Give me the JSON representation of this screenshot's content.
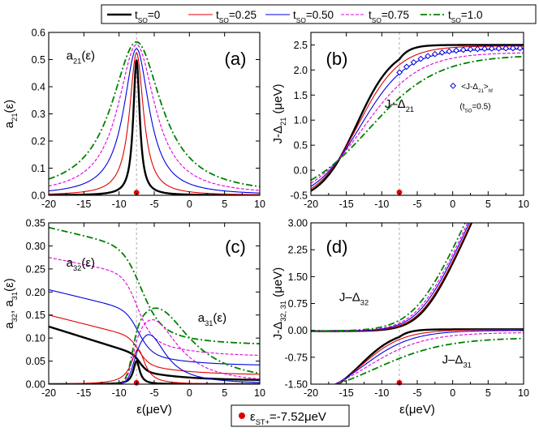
{
  "legend": {
    "items": [
      {
        "label": "t",
        "sub": "SO",
        "value": "=0",
        "color": "#000000",
        "dash": "",
        "width": 2.4
      },
      {
        "label": "t",
        "sub": "SO",
        "value": "=0.25",
        "color": "#e00000",
        "dash": "",
        "width": 1.1
      },
      {
        "label": "t",
        "sub": "SO",
        "value": "=0.50",
        "color": "#0000e0",
        "dash": "",
        "width": 1.1
      },
      {
        "label": "t",
        "sub": "SO",
        "value": "=0.75",
        "color": "#e000e0",
        "dash": "4,2",
        "width": 1.1
      },
      {
        "label": "t",
        "sub": "SO",
        "value": "=1.0",
        "color": "#008000",
        "dash": "8,3,2,3",
        "width": 1.8
      }
    ]
  },
  "bottom_legend": {
    "label": "ε",
    "sub": "ST+",
    "value": "=-7.52μeV",
    "marker_color": "#e00000"
  },
  "chart_data": [
    {
      "id": "a",
      "type": "line",
      "panel_label": "(a)",
      "ylabel": "a",
      "ylabel_sub": "21",
      "ylabel_tail": "(ε)",
      "xlabel": "",
      "xlim": [
        -20,
        10
      ],
      "ylim": [
        0,
        0.6
      ],
      "xticks": [
        "-20",
        "-15",
        "-10",
        "-5",
        "0",
        "5",
        "10"
      ],
      "yticks": [
        "0.0",
        "0.1",
        "0.2",
        "0.3",
        "0.4",
        "0.5",
        "0.6"
      ],
      "ytick_values": [
        0,
        0.1,
        0.2,
        0.3,
        0.4,
        0.5,
        0.6
      ],
      "vline_x": -7.52,
      "marker": {
        "x": -7.52,
        "y": 0.01
      },
      "annotations": [
        {
          "text": "a",
          "sub": "21",
          "tail": "(ε)",
          "x": -17.5,
          "y": 0.5
        }
      ],
      "series": [
        {
          "name": "tSO=0",
          "kind": "lorentz",
          "peak": 0.5,
          "center": -7.52,
          "gamma": 0.55
        },
        {
          "name": "tSO=0.25",
          "kind": "lorentz",
          "peak": 0.525,
          "center": -7.52,
          "gamma": 1.2
        },
        {
          "name": "tSO=0.50",
          "kind": "lorentz",
          "peak": 0.54,
          "center": -7.52,
          "gamma": 2.2
        },
        {
          "name": "tSO=0.75",
          "kind": "lorentz",
          "peak": 0.555,
          "center": -7.52,
          "gamma": 3.2
        },
        {
          "name": "tSO=1.0",
          "kind": "lorentz",
          "peak": 0.565,
          "center": -7.52,
          "gamma": 4.3
        }
      ]
    },
    {
      "id": "b",
      "type": "line",
      "panel_label": "(b)",
      "ylabel": "J-Δ",
      "ylabel_sub": "21",
      "ylabel_tail": " (μeV)",
      "xlabel": "",
      "xlim": [
        -20,
        10
      ],
      "ylim": [
        -0.5,
        2.75
      ],
      "xticks": [
        "-20",
        "-15",
        "-10",
        "-5",
        "0",
        "5",
        "10"
      ],
      "yticks": [
        "-0.5",
        "0.0",
        "0.5",
        "1.0",
        "1.5",
        "2.0",
        "2.5"
      ],
      "ytick_values": [
        -0.5,
        0,
        0.5,
        1.0,
        1.5,
        2.0,
        2.5
      ],
      "vline_x": -7.52,
      "marker": {
        "x": -7.52,
        "y": -0.44
      },
      "annotations": [
        {
          "text": "J–Δ",
          "sub": "21",
          "tail": "",
          "x": -9.6,
          "y": 1.25
        },
        {
          "text": "<J-Δ",
          "sub": "21",
          "tail": ">",
          "sub2": "hf",
          "x": 1.2,
          "y": 1.62
        },
        {
          "text": "(t",
          "sub": "SO",
          "tail": "=0.5)",
          "x": 1.0,
          "y": 1.22
        }
      ],
      "series": [
        {
          "name": "tSO=0",
          "kind": "sigmoid",
          "low": -0.65,
          "high": 2.5,
          "center": -13.5,
          "width": 2.6,
          "cut": -7.52
        },
        {
          "name": "tSO=0.25",
          "kind": "sigmoid",
          "low": -0.65,
          "high": 2.48,
          "center": -13.3,
          "width": 2.9,
          "cut": null
        },
        {
          "name": "tSO=0.50",
          "kind": "sigmoid",
          "low": -0.65,
          "high": 2.42,
          "center": -13.0,
          "width": 3.3,
          "cut": null
        },
        {
          "name": "tSO=0.75",
          "kind": "sigmoid",
          "low": -0.65,
          "high": 2.35,
          "center": -12.6,
          "width": 3.9,
          "cut": null
        },
        {
          "name": "tSO=1.0",
          "kind": "sigmoid",
          "low": -0.65,
          "high": 2.3,
          "center": -11.8,
          "width": 4.8,
          "cut": null
        }
      ],
      "markers": {
        "name": "<J-Δ21>hf (tSO=0.5)",
        "x": [
          -7.5,
          -6.5,
          -5.5,
          -4.5,
          -3.5,
          -2.5,
          -1.5,
          -0.5,
          0.5,
          1.5,
          2.5,
          3.5,
          4.5,
          5.5,
          6.5,
          7.5,
          8.5,
          9.5
        ],
        "color": "#0000e0"
      }
    },
    {
      "id": "c",
      "type": "line",
      "panel_label": "(c)",
      "ylabel": "a",
      "ylabel_sub": "32",
      "ylabel_tail": ", a",
      "ylabel_sub2": "31",
      "ylabel_tail2": "(ε)",
      "xlabel": "ε(μeV)",
      "xlim": [
        -20,
        10
      ],
      "ylim": [
        0,
        0.35
      ],
      "xticks": [
        "-20",
        "-15",
        "-10",
        "-5",
        "0",
        "5",
        "10"
      ],
      "yticks": [
        "0.00",
        "0.05",
        "0.10",
        "0.15",
        "0.20",
        "0.25",
        "0.30",
        "0.35"
      ],
      "ytick_values": [
        0,
        0.05,
        0.1,
        0.15,
        0.2,
        0.25,
        0.3,
        0.35
      ],
      "vline_x": -7.52,
      "marker": {
        "x": -7.52,
        "y": 0.003
      },
      "annotations": [
        {
          "text": "a",
          "sub": "32",
          "tail": "(ε)",
          "x": -17.5,
          "y": 0.255
        },
        {
          "text": "a",
          "sub": "31",
          "tail": "(ε)",
          "x": 1.2,
          "y": 0.135
        }
      ],
      "series": [
        {
          "name": "tSO=0 a32",
          "kind": "step",
          "left": 0.125,
          "plateau": 0.063,
          "right": 0.008,
          "center": -7.0,
          "width": 0.5,
          "slope": 0.003
        },
        {
          "name": "tSO=0.25 a32",
          "kind": "step",
          "left": 0.15,
          "plateau": 0.1,
          "right": 0.02,
          "center": -7.2,
          "width": 0.7,
          "slope": 0.0025
        },
        {
          "name": "tSO=0.50 a32",
          "kind": "step",
          "left": 0.205,
          "plateau": 0.157,
          "right": 0.04,
          "center": -7.3,
          "width": 0.9,
          "slope": 0.0025
        },
        {
          "name": "tSO=0.75 a32",
          "kind": "step",
          "left": 0.275,
          "plateau": 0.235,
          "right": 0.06,
          "center": -7.5,
          "width": 1.0,
          "slope": 0.002
        },
        {
          "name": "tSO=1.0 a32",
          "kind": "step",
          "left": 0.34,
          "plateau": 0.293,
          "right": 0.085,
          "center": -7.0,
          "width": 1.3,
          "slope": 0.0025
        },
        {
          "name": "tSO=0 a31",
          "kind": "lorentz",
          "peak": 0.05,
          "center": -7.52,
          "gamma": 0.55
        },
        {
          "name": "tSO=0.25 a31",
          "kind": "lorentz",
          "peak": 0.075,
          "center": -7.3,
          "gamma": 1.2
        },
        {
          "name": "tSO=0.50 a31",
          "kind": "rise",
          "peak": 0.108,
          "center": -5.8,
          "gamma": 3.0
        },
        {
          "name": "tSO=0.75 a31",
          "kind": "rise",
          "peak": 0.14,
          "center": -5.3,
          "gamma": 4.5
        },
        {
          "name": "tSO=1.0 a31",
          "kind": "rise",
          "peak": 0.165,
          "center": -4.8,
          "gamma": 6.0
        }
      ]
    },
    {
      "id": "d",
      "type": "line",
      "panel_label": "(d)",
      "ylabel": "J-Δ",
      "ylabel_sub": "32, 31",
      "ylabel_tail": " (μeV)",
      "xlabel": "ε(μeV)",
      "xlim": [
        -20,
        10
      ],
      "ylim": [
        -1.5,
        3.0
      ],
      "xticks": [
        "-20",
        "-15",
        "-10",
        "-5",
        "0",
        "5",
        "10"
      ],
      "yticks": [
        "-1.50",
        "-0.75",
        "0.00",
        "0.75",
        "1.50",
        "2.25",
        "3.00"
      ],
      "ytick_values": [
        -1.5,
        -0.75,
        0,
        0.75,
        1.5,
        2.25,
        3.0
      ],
      "vline_x": -7.52,
      "marker": {
        "x": -7.52,
        "y": -1.46
      },
      "annotations": [
        {
          "text": "J–Δ",
          "sub": "32",
          "tail": "",
          "x": -16.0,
          "y": 0.82
        },
        {
          "text": "J–Δ",
          "sub": "31",
          "tail": "",
          "x": -1.5,
          "y": -0.92
        }
      ],
      "series": [
        {
          "name": "tSO=0 J-D32",
          "kind": "softplus",
          "scale": 0.45,
          "center": -4.0,
          "width": 1.9
        },
        {
          "name": "tSO=0.25 J-D32",
          "kind": "softplus",
          "scale": 0.45,
          "center": -4.1,
          "width": 2.0
        },
        {
          "name": "tSO=0.50 J-D32",
          "kind": "softplus",
          "scale": 0.45,
          "center": -4.3,
          "width": 2.1
        },
        {
          "name": "tSO=0.75 J-D32",
          "kind": "softplus",
          "scale": 0.45,
          "center": -4.5,
          "width": 2.2
        },
        {
          "name": "tSO=1.0 J-D32",
          "kind": "softplus",
          "scale": 0.45,
          "center": -4.8,
          "width": 2.4
        },
        {
          "name": "tSO=0 J-D31",
          "kind": "sigmoid",
          "low": -1.95,
          "high": 0.03,
          "center": -13.0,
          "width": 2.6,
          "cut": -7.52
        },
        {
          "name": "tSO=0.25 J-D31",
          "kind": "sigmoid",
          "low": -1.95,
          "high": 0.02,
          "center": -12.8,
          "width": 2.9,
          "cut": null
        },
        {
          "name": "tSO=0.50 J-D31",
          "kind": "sigmoid",
          "low": -1.95,
          "high": 0.0,
          "center": -12.5,
          "width": 3.4,
          "cut": null
        },
        {
          "name": "tSO=0.75 J-D31",
          "kind": "sigmoid",
          "low": -1.95,
          "high": -0.06,
          "center": -12.0,
          "width": 4.0,
          "cut": null
        },
        {
          "name": "tSO=1.0 J-D31",
          "kind": "sigmoid",
          "low": -1.95,
          "high": -0.2,
          "center": -11.0,
          "width": 5.0,
          "cut": null
        }
      ]
    }
  ]
}
